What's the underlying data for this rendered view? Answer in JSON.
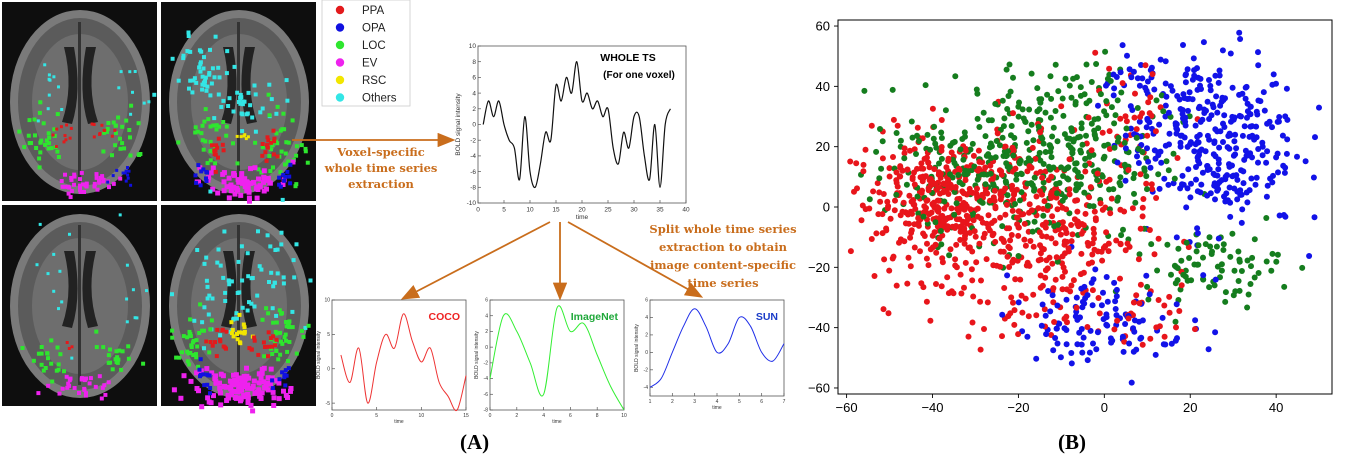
{
  "panel_a": {
    "label": "(A)",
    "legend": [
      {
        "name": "PPA",
        "color": "#e31a1c"
      },
      {
        "name": "OPA",
        "color": "#1010e0"
      },
      {
        "name": "LOC",
        "color": "#2ee62e"
      },
      {
        "name": "EV",
        "color": "#ee22ee"
      },
      {
        "name": "RSC",
        "color": "#f2e600"
      },
      {
        "name": "Others",
        "color": "#33e6e6"
      }
    ],
    "arrow_color": "#c96d1c",
    "annotations": {
      "voxel_extraction": [
        "Voxel-specific",
        "whole time series",
        "extraction"
      ],
      "split_extraction": [
        "Split whole time series",
        "extraction to obtain",
        "image content-specific",
        "time series"
      ]
    },
    "whole_ts": {
      "title_line1": "WHOLE TS",
      "title_line2": "(For one voxel)",
      "xlabel": "time",
      "ylabel": "BOLD signal intensity",
      "xlim": [
        0,
        40
      ],
      "ylim": [
        -10,
        10
      ],
      "xticks": [
        0,
        5,
        10,
        15,
        20,
        25,
        30,
        35,
        40
      ],
      "yticks": [
        10,
        8,
        6,
        4,
        2,
        0,
        -2,
        -4,
        -6,
        -8,
        -10
      ],
      "x": [
        1,
        2,
        3,
        4,
        5,
        6,
        7,
        8,
        9,
        10,
        11,
        12,
        13,
        14,
        15,
        16,
        17,
        18,
        19,
        20,
        21,
        22,
        23,
        24,
        25,
        26,
        27,
        28,
        29,
        30,
        31,
        32,
        33,
        34,
        35,
        36,
        37
      ],
      "y": [
        0,
        3,
        1,
        3,
        0,
        -2,
        -3,
        -7,
        1,
        -6,
        -8,
        -5,
        -1,
        -2,
        5,
        3,
        6,
        4,
        8,
        3,
        4,
        2,
        3,
        1,
        2,
        -3,
        -5,
        -1,
        -3,
        1,
        1,
        -4,
        -7,
        0,
        -8,
        0,
        2
      ]
    },
    "subplots": [
      {
        "title": "COCO",
        "title_color": "#ee2222",
        "line_color": "#ee3333",
        "xlabel": "time",
        "ylabel": "BOLD signal intensity",
        "xlim": [
          0,
          15
        ],
        "ylim": [
          -6,
          10
        ],
        "xticks": [
          0,
          5,
          10,
          15
        ],
        "yticks": [
          10,
          5,
          0,
          -5
        ],
        "x": [
          1,
          2,
          3,
          4,
          5,
          6,
          7,
          8,
          9,
          10,
          11,
          12,
          13,
          14,
          15
        ],
        "y": [
          2,
          -2,
          3,
          -5,
          1,
          5,
          3,
          8,
          4,
          1,
          3,
          -2,
          -4,
          -6,
          -1
        ]
      },
      {
        "title": "ImageNet",
        "title_color": "#1fa83a",
        "line_color": "#33ee33",
        "xlabel": "time",
        "ylabel": "BOLD signal intensity",
        "xlim": [
          0,
          10
        ],
        "ylim": [
          -8,
          6
        ],
        "xticks": [
          0,
          2,
          4,
          6,
          8,
          10
        ],
        "yticks": [
          6,
          4,
          2,
          0,
          -2,
          -4,
          -6,
          -8
        ],
        "x": [
          0,
          1,
          2,
          3,
          4,
          5,
          6,
          7,
          8,
          9,
          10
        ],
        "y": [
          -4,
          4,
          2,
          -2,
          -6,
          5,
          2,
          3,
          -1,
          -5,
          -8
        ]
      },
      {
        "title": "SUN",
        "title_color": "#1a3cc8",
        "line_color": "#1f2ee8",
        "xlabel": "time",
        "ylabel": "BOLD signal intensity",
        "xlim": [
          1,
          7
        ],
        "ylim": [
          -5,
          6
        ],
        "xticks": [
          1,
          2,
          3,
          4,
          5,
          6,
          7
        ],
        "yticks": [
          6,
          4,
          2,
          0,
          -2,
          -4
        ],
        "x": [
          1,
          1.5,
          2,
          2.5,
          3,
          3.5,
          4,
          4.5,
          5,
          5.5,
          6,
          6.5,
          7
        ],
        "y": [
          -4,
          -3,
          0,
          3,
          5,
          3,
          0,
          1,
          4,
          3,
          0,
          -1,
          1
        ]
      }
    ]
  },
  "chart_data": {
    "type": "scatter",
    "panel_label": "(B)",
    "xlim": [
      -62,
      53
    ],
    "ylim": [
      -62,
      62
    ],
    "xticks": [
      -60,
      -40,
      -20,
      0,
      20,
      40
    ],
    "yticks": [
      60,
      40,
      20,
      0,
      -20,
      -40,
      -60
    ],
    "series": [
      {
        "name": "red cluster",
        "color": "#e8151b",
        "clusters": [
          [
            -35,
            0,
            12,
            12,
            470
          ],
          [
            -10,
            -8,
            10,
            13,
            200
          ],
          [
            -20,
            -38,
            6,
            5,
            25
          ],
          [
            8,
            -38,
            5,
            6,
            30
          ],
          [
            5,
            30,
            8,
            10,
            40
          ]
        ]
      },
      {
        "name": "green cluster",
        "color": "#157d1e",
        "clusters": [
          [
            -15,
            15,
            14,
            13,
            330
          ],
          [
            25,
            -20,
            8,
            6,
            80
          ],
          [
            -5,
            35,
            10,
            8,
            60
          ],
          [
            -40,
            10,
            8,
            8,
            60
          ]
        ]
      },
      {
        "name": "blue cluster",
        "color": "#1212e8",
        "clusters": [
          [
            25,
            22,
            10,
            15,
            320
          ],
          [
            0,
            -40,
            10,
            6,
            90
          ],
          [
            -5,
            -28,
            6,
            6,
            25
          ],
          [
            10,
            40,
            8,
            6,
            40
          ]
        ]
      }
    ]
  }
}
